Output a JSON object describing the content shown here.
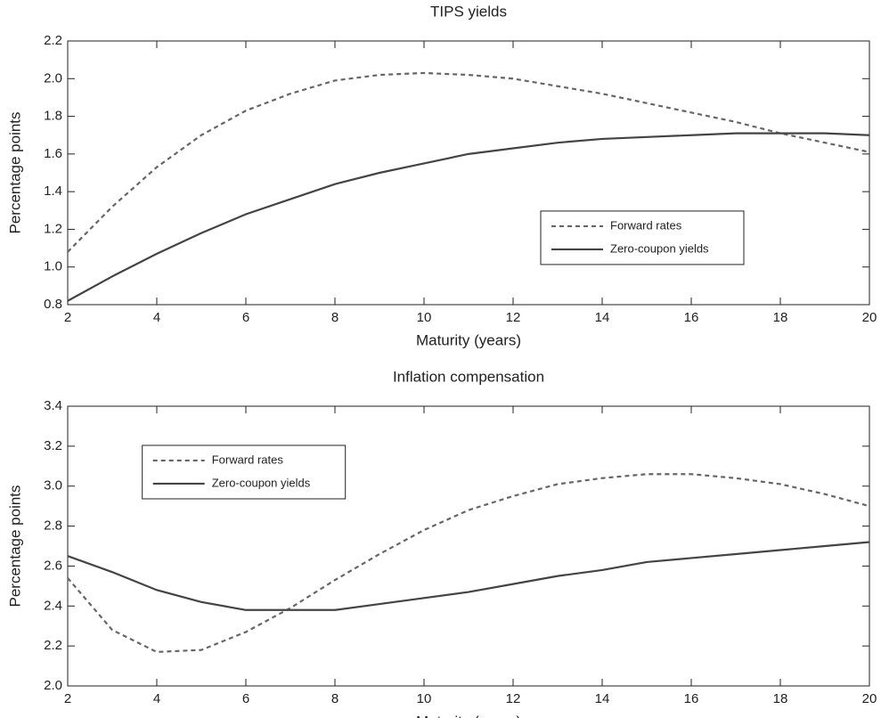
{
  "chart_data": [
    {
      "type": "line",
      "title": "TIPS yields",
      "x_label": "Maturity (years)",
      "y_label": "Percentage points",
      "x": [
        2,
        3,
        4,
        5,
        6,
        7,
        8,
        9,
        10,
        11,
        12,
        13,
        14,
        15,
        16,
        17,
        18,
        19,
        20
      ],
      "series": [
        {
          "name": "Forward rates",
          "color": "#666666",
          "linestyle": "dashed",
          "values": [
            1.08,
            1.32,
            1.53,
            1.7,
            1.83,
            1.92,
            1.99,
            2.02,
            2.03,
            2.02,
            2.0,
            1.96,
            1.92,
            1.87,
            1.82,
            1.77,
            1.71,
            1.66,
            1.61
          ]
        },
        {
          "name": "Zero-coupon yields",
          "color": "#444444",
          "linestyle": "solid",
          "values": [
            0.82,
            0.95,
            1.07,
            1.18,
            1.28,
            1.36,
            1.44,
            1.5,
            1.55,
            1.6,
            1.63,
            1.66,
            1.68,
            1.69,
            1.7,
            1.71,
            1.71,
            1.71,
            1.7
          ]
        }
      ],
      "xlim": [
        2,
        20
      ],
      "xticks": [
        2,
        4,
        6,
        8,
        10,
        12,
        14,
        16,
        18,
        20
      ],
      "ylim": [
        0.8,
        2.2
      ],
      "yticks": [
        0.8,
        {
          "value": 1,
          "label": "1.0"
        },
        1.2,
        1.4,
        1.6,
        1.8,
        {
          "value": 2,
          "label": "2.0"
        },
        2.2
      ],
      "grid": false,
      "legend_position": "center-right"
    },
    {
      "type": "line",
      "title": "Inflation compensation",
      "x_label": "Maturity (years)",
      "y_label": "Percentage points",
      "x": [
        2,
        3,
        4,
        5,
        6,
        7,
        8,
        9,
        10,
        11,
        12,
        13,
        14,
        15,
        16,
        17,
        18,
        19,
        20
      ],
      "series": [
        {
          "name": "Forward rates",
          "color": "#666666",
          "linestyle": "dashed",
          "values": [
            2.54,
            2.28,
            2.17,
            2.18,
            2.27,
            2.39,
            2.53,
            2.66,
            2.78,
            2.88,
            2.95,
            3.01,
            3.04,
            3.06,
            3.06,
            3.04,
            3.01,
            2.96,
            2.9
          ]
        },
        {
          "name": "Zero-coupon yields",
          "color": "#444444",
          "linestyle": "solid",
          "values": [
            2.65,
            2.57,
            2.48,
            2.42,
            2.38,
            2.38,
            2.38,
            2.41,
            2.44,
            2.47,
            2.51,
            2.55,
            2.58,
            2.62,
            2.64,
            2.66,
            2.68,
            2.7,
            2.72
          ]
        }
      ],
      "xlim": [
        2,
        20
      ],
      "xticks": [
        2,
        4,
        6,
        8,
        10,
        12,
        14,
        16,
        18,
        20
      ],
      "ylim": [
        2.0,
        3.4
      ],
      "yticks": [
        {
          "value": 2,
          "label": "2.0"
        },
        2.2,
        2.4,
        2.6,
        2.8,
        {
          "value": 3,
          "label": "3.0"
        },
        3.2,
        3.4
      ],
      "grid": false,
      "legend_position": "upper-left"
    }
  ]
}
